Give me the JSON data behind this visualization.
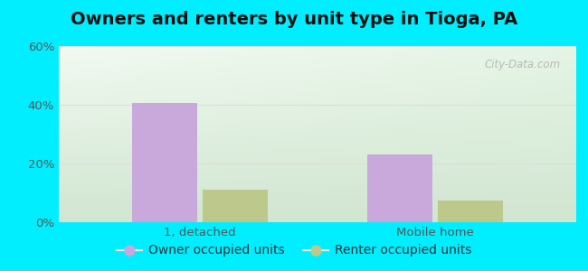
{
  "title": "Owners and renters by unit type in Tioga, PA",
  "categories": [
    "1, detached",
    "Mobile home"
  ],
  "series": [
    {
      "label": "Owner occupied units",
      "values": [
        40.5,
        23.0
      ],
      "color": "#c9a8dc"
    },
    {
      "label": "Renter occupied units",
      "values": [
        11.0,
        7.5
      ],
      "color": "#bcc98a"
    }
  ],
  "ylim": [
    0,
    60
  ],
  "yticks": [
    0,
    20,
    40,
    60
  ],
  "ytick_labels": [
    "0%",
    "20%",
    "40%",
    "60%"
  ],
  "bar_width": 0.28,
  "background_outer": "#00eeff",
  "background_grad_topleft": "#cce8cc",
  "background_grad_topright": "#f0f8f0",
  "background_grad_bottom": "#d0ecd0",
  "grid_color": "#e8e8e8",
  "title_fontsize": 14,
  "tick_fontsize": 9.5,
  "legend_fontsize": 10,
  "watermark": "City-Data.com",
  "tick_color": "#555555"
}
